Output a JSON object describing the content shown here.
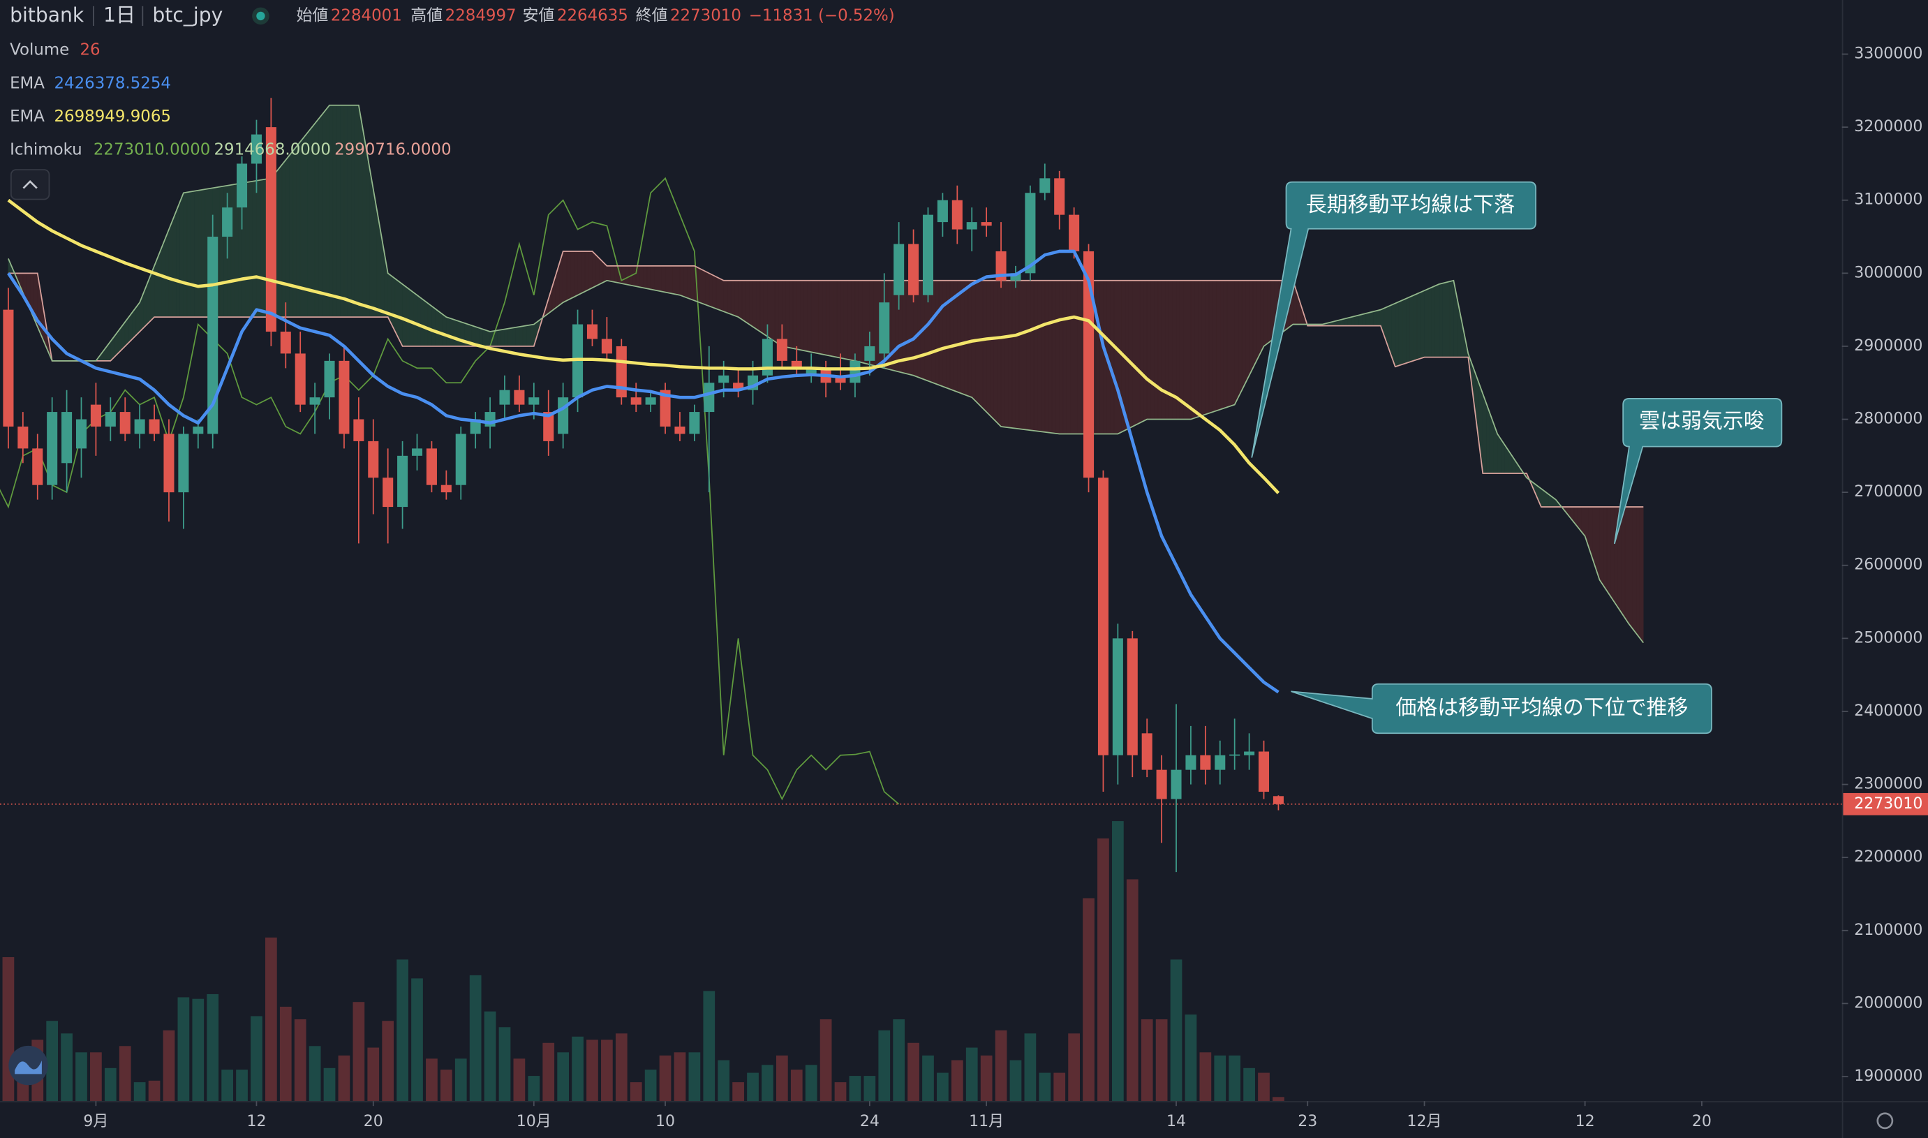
{
  "chart_data": {
    "type": "candlestick",
    "header": {
      "exchange": "bitbank",
      "interval": "1日",
      "symbol": "btc_jpy",
      "open_label": "始値",
      "high_label": "高値",
      "low_label": "安値",
      "close_label": "終値",
      "change": "−11831 (−0.52%)"
    },
    "xlim": [
      -6.57,
      119.6
    ],
    "xticks": [
      {
        "value": 0,
        "label": "9月"
      },
      {
        "value": 11,
        "label": "12"
      },
      {
        "value": 19,
        "label": "20"
      },
      {
        "value": 30,
        "label": "10月"
      },
      {
        "value": 39,
        "label": "10"
      },
      {
        "value": 53,
        "label": "24"
      },
      {
        "value": 61,
        "label": "11月"
      },
      {
        "value": 74,
        "label": "14"
      },
      {
        "value": 83,
        "label": "23"
      },
      {
        "value": 91,
        "label": "12月"
      },
      {
        "value": 102,
        "label": "12"
      },
      {
        "value": 110,
        "label": "20"
      }
    ],
    "ylim": [
      1866400,
      3374100
    ],
    "yticks": [
      1900000,
      2000000,
      2100000,
      2200000,
      2300000,
      2400000,
      2500000,
      2600000,
      2700000,
      2800000,
      2900000,
      3000000,
      3100000,
      3200000,
      3300000
    ],
    "grid": false,
    "up_color": "#3d9c8b",
    "down_color": "#e0574f",
    "x": [
      -6,
      -5,
      -4,
      -3,
      -2,
      -1,
      0,
      1,
      2,
      3,
      4,
      5,
      6,
      7,
      8,
      9,
      10,
      11,
      12,
      13,
      14,
      15,
      16,
      17,
      18,
      19,
      20,
      21,
      22,
      23,
      24,
      25,
      26,
      27,
      28,
      29,
      30,
      31,
      32,
      33,
      34,
      35,
      36,
      37,
      38,
      39,
      40,
      41,
      42,
      43,
      44,
      45,
      46,
      47,
      48,
      49,
      50,
      51,
      52,
      53,
      54,
      55,
      56,
      57,
      58,
      59,
      60,
      61,
      62,
      63,
      64,
      65,
      66,
      67,
      68,
      69,
      70,
      71,
      72,
      73,
      74,
      75,
      76,
      77,
      78,
      79,
      80,
      81
    ],
    "open": [
      2950000,
      2790000,
      2760000,
      2710000,
      2740000,
      2760000,
      2820000,
      2790000,
      2810000,
      2780000,
      2800000,
      2780000,
      2700000,
      2780000,
      2780000,
      3050000,
      3090000,
      3150000,
      3200000,
      2920000,
      2890000,
      2820000,
      2830000,
      2880000,
      2800000,
      2770000,
      2720000,
      2680000,
      2750000,
      2760000,
      2710000,
      2710000,
      2780000,
      2790000,
      2820000,
      2840000,
      2820000,
      2810000,
      2780000,
      2830000,
      2930000,
      2910000,
      2900000,
      2830000,
      2820000,
      2840000,
      2790000,
      2780000,
      2810000,
      2850000,
      2850000,
      2840000,
      2860000,
      2910000,
      2880000,
      2860000,
      2870000,
      2860000,
      2850000,
      2880000,
      2890000,
      2970000,
      3040000,
      2970000,
      3070000,
      3100000,
      3060000,
      3070000,
      3030000,
      2990000,
      3000000,
      3110000,
      3130000,
      3080000,
      3030000,
      2720000,
      2340000,
      2500000,
      2370000,
      2320000,
      2280000,
      2320000,
      2340000,
      2320000,
      2340000,
      2340000,
      2345000,
      2284001
    ],
    "high": [
      2980000,
      2810000,
      2780000,
      2830000,
      2840000,
      2830000,
      2850000,
      2830000,
      2830000,
      2820000,
      2820000,
      2800000,
      2790000,
      2800000,
      3080000,
      3110000,
      3160000,
      3210000,
      3240000,
      2960000,
      2920000,
      2850000,
      2890000,
      2900000,
      2830000,
      2800000,
      2760000,
      2770000,
      2780000,
      2770000,
      2730000,
      2790000,
      2810000,
      2830000,
      2860000,
      2860000,
      2850000,
      2840000,
      2850000,
      2950000,
      2950000,
      2940000,
      2910000,
      2850000,
      2840000,
      2850000,
      2810000,
      2820000,
      2900000,
      2880000,
      2870000,
      2880000,
      2930000,
      2930000,
      2900000,
      2890000,
      2880000,
      2890000,
      2890000,
      2920000,
      3000000,
      3070000,
      3060000,
      3090000,
      3110000,
      3120000,
      3090000,
      3090000,
      3070000,
      3010000,
      3120000,
      3150000,
      3140000,
      3090000,
      3040000,
      2730000,
      2520000,
      2510000,
      2390000,
      2340000,
      2410000,
      2380000,
      2380000,
      2360000,
      2390000,
      2370000,
      2360000,
      2284997
    ],
    "low": [
      2760000,
      2740000,
      2690000,
      2690000,
      2700000,
      2720000,
      2750000,
      2770000,
      2770000,
      2760000,
      2770000,
      2660000,
      2650000,
      2760000,
      2760000,
      3020000,
      3060000,
      3110000,
      2900000,
      2870000,
      2810000,
      2780000,
      2800000,
      2760000,
      2630000,
      2670000,
      2630000,
      2650000,
      2730000,
      2700000,
      2690000,
      2690000,
      2760000,
      2760000,
      2800000,
      2810000,
      2800000,
      2750000,
      2760000,
      2810000,
      2900000,
      2880000,
      2820000,
      2810000,
      2810000,
      2780000,
      2770000,
      2770000,
      2700000,
      2830000,
      2830000,
      2820000,
      2850000,
      2870000,
      2860000,
      2850000,
      2830000,
      2840000,
      2830000,
      2860000,
      2870000,
      2950000,
      2960000,
      2960000,
      3050000,
      3040000,
      3030000,
      3050000,
      2980000,
      2980000,
      2990000,
      3100000,
      3060000,
      3020000,
      2700000,
      2290000,
      2300000,
      2310000,
      2310000,
      2220000,
      2180000,
      2300000,
      2300000,
      2300000,
      2320000,
      2320000,
      2280000,
      2264635
    ],
    "close": [
      2790000,
      2760000,
      2710000,
      2810000,
      2810000,
      2800000,
      2790000,
      2810000,
      2780000,
      2800000,
      2780000,
      2700000,
      2780000,
      2790000,
      3050000,
      3090000,
      3150000,
      3190000,
      2920000,
      2890000,
      2820000,
      2830000,
      2880000,
      2780000,
      2770000,
      2720000,
      2680000,
      2750000,
      2760000,
      2710000,
      2700000,
      2780000,
      2800000,
      2810000,
      2840000,
      2820000,
      2830000,
      2770000,
      2830000,
      2930000,
      2910000,
      2890000,
      2830000,
      2820000,
      2830000,
      2790000,
      2780000,
      2810000,
      2850000,
      2860000,
      2840000,
      2860000,
      2910000,
      2880000,
      2870000,
      2870000,
      2850000,
      2850000,
      2880000,
      2900000,
      2960000,
      3040000,
      2970000,
      3080000,
      3100000,
      3060000,
      3070000,
      3065000,
      2990000,
      3000000,
      3110000,
      3130000,
      3080000,
      3030000,
      2720000,
      2340000,
      2500000,
      2340000,
      2320000,
      2280000,
      2320000,
      2340000,
      2320000,
      2340000,
      2341000,
      2345000,
      2290000,
      2273010
    ],
    "volume": {
      "name": "Volume",
      "y2lim": [
        0,
        7000
      ],
      "up_color": "#1d4a47",
      "down_color": "#5c2d33",
      "values": [
        915,
        270,
        390,
        510,
        430,
        310,
        310,
        210,
        350,
        120,
        130,
        450,
        660,
        650,
        680,
        200,
        200,
        540,
        1040,
        600,
        520,
        350,
        210,
        290,
        630,
        340,
        510,
        900,
        780,
        270,
        200,
        270,
        800,
        570,
        470,
        270,
        160,
        370,
        310,
        410,
        390,
        390,
        430,
        120,
        200,
        290,
        310,
        310,
        700,
        260,
        120,
        180,
        230,
        290,
        200,
        230,
        520,
        120,
        160,
        160,
        450,
        520,
        370,
        290,
        180,
        260,
        340,
        290,
        450,
        260,
        430,
        180,
        180,
        430,
        1290,
        1670,
        1780,
        1410,
        520,
        520,
        900,
        550,
        310,
        290,
        290,
        210,
        180,
        26
      ]
    },
    "ema": [
      {
        "name": "EMA",
        "color": "#4a8ff0",
        "values": [
          3000000,
          2970000,
          2935000,
          2910000,
          2890000,
          2880000,
          2870000,
          2865000,
          2860000,
          2855000,
          2840000,
          2820000,
          2805000,
          2795000,
          2820000,
          2870000,
          2920000,
          2950000,
          2945000,
          2935000,
          2925000,
          2920000,
          2915000,
          2900000,
          2880000,
          2860000,
          2845000,
          2835000,
          2830000,
          2820000,
          2805000,
          2800000,
          2798000,
          2795000,
          2800000,
          2805000,
          2808000,
          2805000,
          2815000,
          2830000,
          2840000,
          2845000,
          2843000,
          2840000,
          2838000,
          2833000,
          2830000,
          2830000,
          2835000,
          2840000,
          2840000,
          2845000,
          2855000,
          2858000,
          2860000,
          2861000,
          2860000,
          2858000,
          2860000,
          2865000,
          2880000,
          2900000,
          2910000,
          2930000,
          2955000,
          2970000,
          2985000,
          2995000,
          2997000,
          2998000,
          3010000,
          3025000,
          3030000,
          3030000,
          2990000,
          2900000,
          2840000,
          2770000,
          2700000,
          2640000,
          2600000,
          2560000,
          2530000,
          2500000,
          2480000,
          2460000,
          2440000,
          2426378.5254
        ]
      },
      {
        "name": "EMA",
        "color": "#f3e56b",
        "values": [
          3100000,
          3085000,
          3070000,
          3058000,
          3048000,
          3038000,
          3030000,
          3022000,
          3014000,
          3007000,
          3000000,
          2993000,
          2987000,
          2982000,
          2984000,
          2988000,
          2992000,
          2995000,
          2990000,
          2985000,
          2980000,
          2975000,
          2970000,
          2965000,
          2958000,
          2952000,
          2945000,
          2938000,
          2930000,
          2922000,
          2915000,
          2908000,
          2902000,
          2897000,
          2893000,
          2889000,
          2886000,
          2883000,
          2881000,
          2882000,
          2882000,
          2881000,
          2879000,
          2877000,
          2875000,
          2874000,
          2872000,
          2871000,
          2870000,
          2870000,
          2869000,
          2869000,
          2870000,
          2870000,
          2870000,
          2870000,
          2869000,
          2869000,
          2869000,
          2870000,
          2874000,
          2880000,
          2884000,
          2890000,
          2897000,
          2902000,
          2907000,
          2910000,
          2912000,
          2915000,
          2922000,
          2930000,
          2936000,
          2940000,
          2935000,
          2915000,
          2895000,
          2875000,
          2855000,
          2840000,
          2830000,
          2815000,
          2800000,
          2785000,
          2765000,
          2740000,
          2720000,
          2698949.9065
        ]
      }
    ],
    "ichimoku": {
      "name": "Ichimoku",
      "legend_values": [
        "2273010.0000",
        "2914668.0000",
        "2990716.0000"
      ],
      "legend_colors": [
        "#74b04f",
        "#b9d7a8",
        "#e9a299"
      ],
      "lagging_color": "#5f9a3e",
      "cloud_up_color": "#223a33",
      "cloud_down_color": "#3d2329",
      "span_a": {
        "color": "#93b88c",
        "x": [
          -6,
          -3,
          0,
          3,
          6,
          12,
          16,
          18,
          20,
          24,
          27,
          30,
          32,
          35,
          40,
          44,
          47,
          52,
          56,
          60,
          62,
          66,
          70,
          72,
          75,
          78,
          80,
          82,
          84,
          88,
          92,
          93,
          94,
          96,
          98,
          100,
          102,
          103,
          105,
          106
        ],
        "values": [
          3020000,
          2880000,
          2880000,
          2960000,
          3110000,
          3130000,
          3230000,
          3230000,
          3000000,
          2940000,
          2920000,
          2930000,
          2960000,
          2990000,
          2970000,
          2940000,
          2900000,
          2880000,
          2860000,
          2830000,
          2790000,
          2780000,
          2780000,
          2800000,
          2800000,
          2820000,
          2900000,
          2930000,
          2930000,
          2950000,
          2985000,
          2990000,
          2890000,
          2780000,
          2720000,
          2690000,
          2640000,
          2580000,
          2520000,
          2494000
        ]
      },
      "span_b": {
        "color": "#d8a29c",
        "x": [
          -6,
          -4,
          -3,
          1,
          3,
          4,
          20,
          21,
          30,
          32,
          34,
          35,
          41,
          43,
          82,
          83,
          88,
          89,
          91,
          94,
          95,
          98,
          99,
          106
        ],
        "values": [
          3000000,
          3000000,
          2880000,
          2880000,
          2920000,
          2940000,
          2940000,
          2900000,
          2900000,
          3030000,
          3030000,
          3010000,
          3010000,
          2990000,
          2990000,
          2928000,
          2928000,
          2872000,
          2885000,
          2885000,
          2726000,
          2726000,
          2680000,
          2680000
        ]
      }
    },
    "annotations": [
      {
        "text": "長期移動平均線は下落"
      },
      {
        "text": "雲は弱気示唆"
      },
      {
        "text": "価格は移動平均線の下位で推移"
      }
    ]
  }
}
